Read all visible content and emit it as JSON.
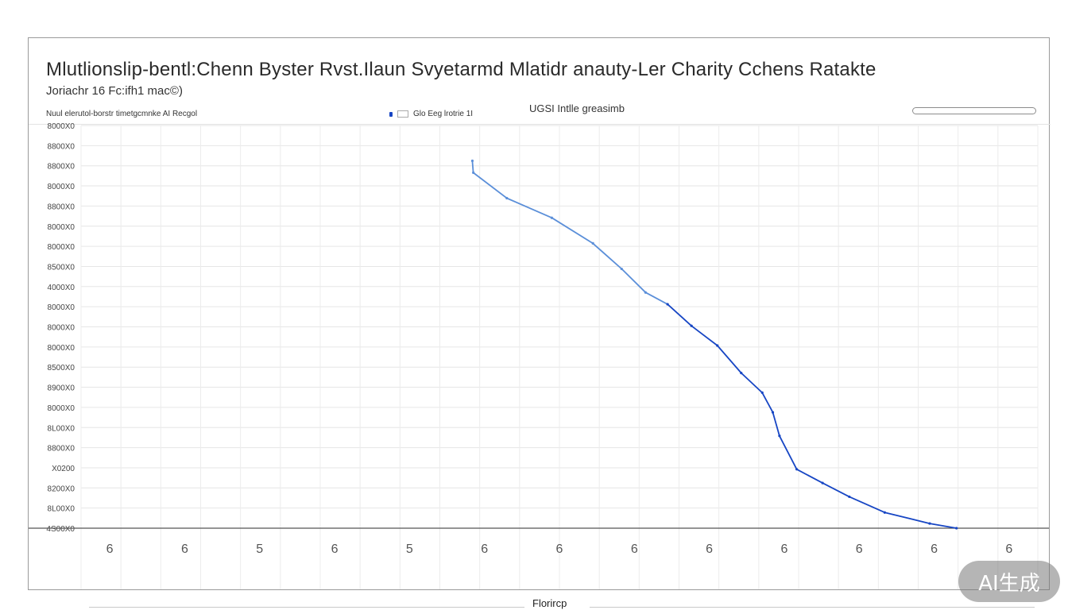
{
  "header": {
    "title": "Mlutlionslip-bentl:Chenn Byster Rvst.Ilaun Svyetarmd Mlatidr anauty-Ler Charity Cchens Ratakte",
    "subtitle": "Joriachr 16 Fc:ifh1 mac©)",
    "meta_left": "Nuul elerutol-borstr timetgcmnke AI Recgol",
    "legend_label": "Glo Eeg lrotrie 1I",
    "meta_center": "UGSI Intlle greasimb"
  },
  "footer": {
    "x_label": "Florircp",
    "badge": "AI生成"
  },
  "chart_data": {
    "type": "line",
    "title": "Mlutlionslip-bentl:Chenn Byster Rvst.Ilaun Svyetarmd Mlatidr anauty-Ler Charity Cchens Ratakte",
    "subtitle": "Joriachr 16 Fc:ifh1 mac©)",
    "xlabel": "Florircp",
    "ylabel": "",
    "grid": true,
    "y_ticks": [
      "4S00X0",
      "8L00X0",
      "8200X0",
      "X0200",
      "8800X0",
      "8L00X0",
      "8000X0",
      "8900X0",
      "8500X0",
      "8000X0",
      "8000X0",
      "8000X0",
      "4000X0",
      "8500X0",
      "8000X0",
      "8000X0",
      "8800X0",
      "8000X0",
      "8800X0",
      "8800X0",
      "8000X0"
    ],
    "x_ticks": [
      "6",
      "6",
      "5",
      "6",
      "5",
      "6",
      "6",
      "6",
      "6",
      "6",
      "6",
      "6",
      "6"
    ],
    "xlim": [
      0,
      100
    ],
    "ylim": [
      0,
      20.5
    ],
    "series": [
      {
        "points": [
          [
            40.9,
            18.7
          ],
          [
            41.0,
            18.1
          ],
          [
            44.5,
            16.8
          ],
          [
            49.2,
            15.8
          ],
          [
            53.5,
            14.5
          ],
          [
            56.5,
            13.2
          ],
          [
            59.0,
            12.0
          ],
          [
            61.3,
            11.4
          ]
        ]
      },
      {
        "points": [
          [
            61.3,
            11.4
          ],
          [
            63.8,
            10.3
          ],
          [
            66.5,
            9.3
          ],
          [
            69.0,
            7.9
          ],
          [
            71.2,
            6.9
          ],
          [
            72.3,
            5.9
          ],
          [
            73.0,
            4.7
          ],
          [
            74.8,
            3.0
          ],
          [
            77.5,
            2.3
          ],
          [
            80.3,
            1.6
          ],
          [
            84.0,
            0.8
          ],
          [
            88.7,
            0.24
          ],
          [
            91.5,
            0.0
          ]
        ]
      }
    ]
  }
}
